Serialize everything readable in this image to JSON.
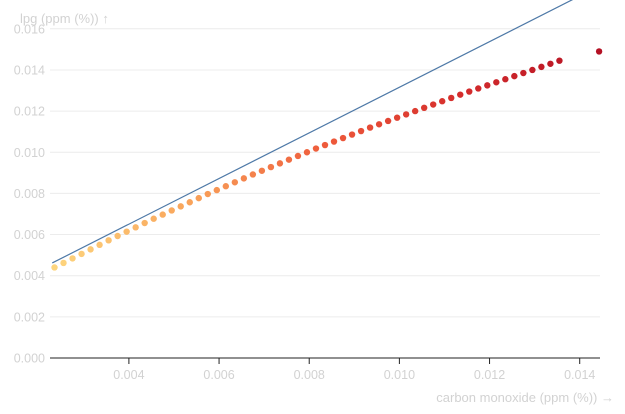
{
  "chart_data": {
    "type": "scatter",
    "xlabel": "carbon monoxide (ppm (%)) →",
    "ylabel": "lpg (ppm (%)) ↑",
    "xlim": [
      0.00225,
      0.01445
    ],
    "ylim": [
      0,
      0.0174
    ],
    "x_ticks": [
      "0.004",
      "0.006",
      "0.008",
      "0.010",
      "0.012",
      "0.014"
    ],
    "y_ticks": [
      "0.000",
      "0.002",
      "0.004",
      "0.006",
      "0.008",
      "0.010",
      "0.012",
      "0.014",
      "0.016"
    ],
    "grid": "horizontal",
    "trend_line": {
      "x": [
        0.0023,
        0.0145
      ],
      "y": [
        0.00462,
        0.01815
      ]
    },
    "color_scale": [
      "#fdd57e",
      "#f9a35a",
      "#ee5a3b",
      "#d42c2c",
      "#b41124"
    ],
    "points": {
      "x": [
        0.00235,
        0.00255,
        0.00275,
        0.00295,
        0.00315,
        0.00335,
        0.00355,
        0.00375,
        0.00395,
        0.00415,
        0.00435,
        0.00455,
        0.00475,
        0.00495,
        0.00515,
        0.00535,
        0.00555,
        0.00575,
        0.00595,
        0.00615,
        0.00635,
        0.00655,
        0.00675,
        0.00695,
        0.00715,
        0.00735,
        0.00755,
        0.00775,
        0.00795,
        0.00815,
        0.00835,
        0.00855,
        0.00875,
        0.00895,
        0.00915,
        0.00935,
        0.00955,
        0.00975,
        0.00995,
        0.01015,
        0.01035,
        0.01055,
        0.01075,
        0.01095,
        0.01115,
        0.01135,
        0.01155,
        0.01175,
        0.01195,
        0.01215,
        0.01235,
        0.01255,
        0.01275,
        0.01295,
        0.01315,
        0.01335,
        0.01355,
        0.01443
      ],
      "y": [
        0.0044,
        0.00462,
        0.00484,
        0.00506,
        0.00528,
        0.0055,
        0.00572,
        0.00593,
        0.00614,
        0.00635,
        0.00656,
        0.00677,
        0.00697,
        0.00717,
        0.00737,
        0.00757,
        0.00777,
        0.00797,
        0.00816,
        0.00835,
        0.00854,
        0.00873,
        0.00892,
        0.0091,
        0.00928,
        0.00946,
        0.00964,
        0.00982,
        0.01,
        0.01018,
        0.01035,
        0.01052,
        0.01069,
        0.01086,
        0.01103,
        0.0112,
        0.01136,
        0.01152,
        0.01168,
        0.01184,
        0.012,
        0.01216,
        0.01232,
        0.01248,
        0.01264,
        0.0128,
        0.01295,
        0.0131,
        0.01325,
        0.0134,
        0.01355,
        0.0137,
        0.01385,
        0.014,
        0.01415,
        0.0143,
        0.01445,
        0.0149
      ]
    }
  }
}
